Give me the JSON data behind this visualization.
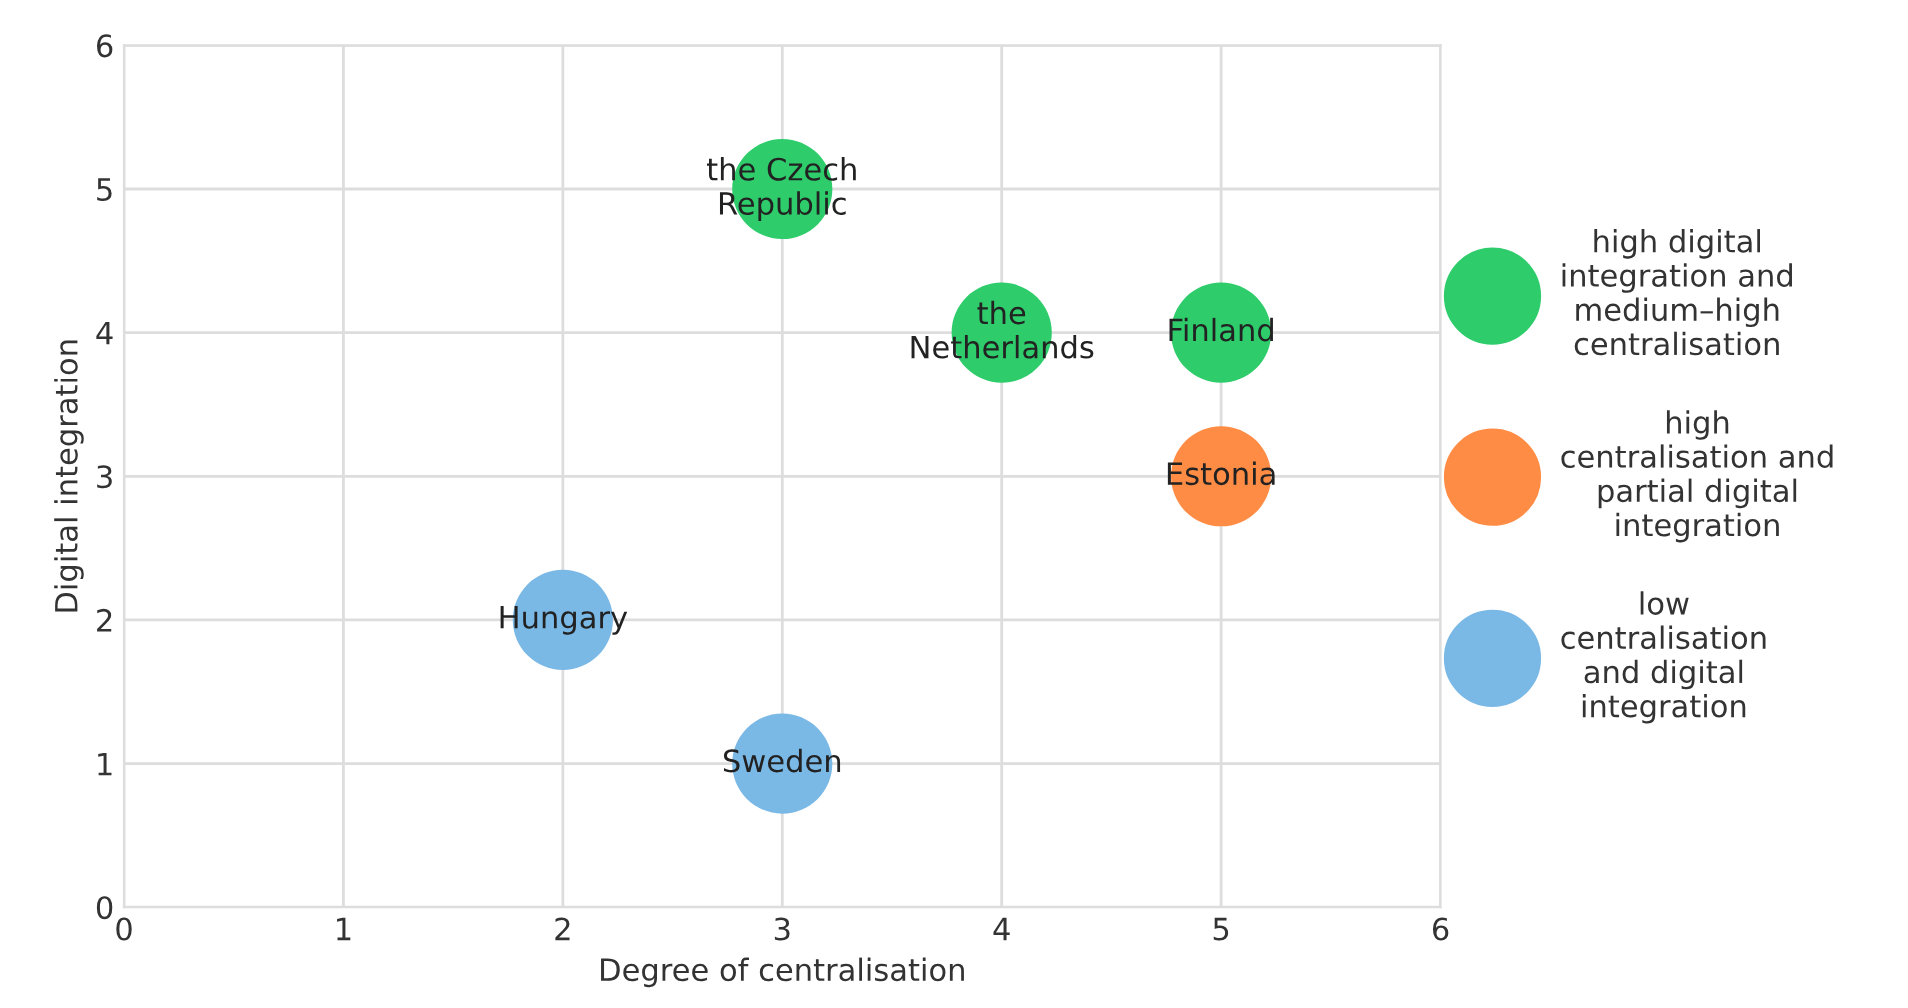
{
  "chart_data": {
    "type": "scatter",
    "xlabel": "Degree of centralisation",
    "ylabel": "Digital integration",
    "xlim": [
      0,
      6
    ],
    "ylim": [
      0,
      6
    ],
    "xticks": [
      0,
      1,
      2,
      3,
      4,
      5,
      6
    ],
    "yticks": [
      0,
      1,
      2,
      3,
      4,
      5,
      6
    ],
    "grid": true,
    "legend": "right",
    "marker": "circle",
    "series": [
      {
        "name": "high digital\nintegration and\nmedium–high\ncentralisation",
        "color": "#2ecc6b",
        "x": [
          3,
          4,
          5
        ],
        "values": [
          5,
          4,
          4
        ]
      },
      {
        "name": "high\ncentralisation and\npartial digital\nintegration",
        "color": "#ff8c45",
        "x": [
          5
        ],
        "values": [
          3
        ]
      },
      {
        "name": "low\ncentralisation\nand digital\nintegration",
        "color": "#7ab8e6",
        "x": [
          2,
          3
        ],
        "values": [
          2,
          1
        ]
      }
    ],
    "annotations": [
      {
        "text": "the Czech\nRepublic",
        "x": 3,
        "y": 5
      },
      {
        "text": "the\nNetherlands",
        "x": 4,
        "y": 4
      },
      {
        "text": "Finland",
        "x": 5,
        "y": 4
      },
      {
        "text": "Estonia",
        "x": 5,
        "y": 3
      },
      {
        "text": "Hungary",
        "x": 2,
        "y": 2
      },
      {
        "text": "Sweden",
        "x": 3,
        "y": 1
      }
    ]
  }
}
